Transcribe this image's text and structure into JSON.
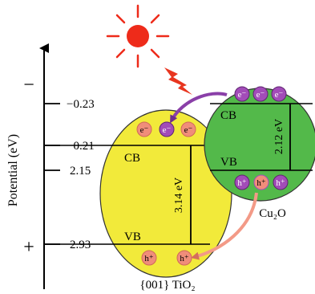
{
  "axis": {
    "label": "Potential (eV)",
    "minus_sign": "−",
    "plus_sign": "+",
    "ticks": [
      "−0.23",
      "−0.21",
      "2.15",
      "2.93"
    ]
  },
  "tio2": {
    "label": "{001} TiO₂",
    "cb_label": "CB",
    "vb_label": "VB",
    "gap_label": "3.14 eV",
    "fill": "#f2ea3a",
    "electrons": [
      "e⁻",
      "e⁻",
      "e⁻"
    ],
    "holes": [
      "h⁺",
      "h⁺"
    ]
  },
  "cu2o": {
    "label": "Cu₂O",
    "cb_label": "CB",
    "vb_label": "VB",
    "gap_label": "2.12 eV",
    "fill": "#53b94a",
    "electrons": [
      "e⁻",
      "e⁻",
      "e⁻"
    ],
    "holes": [
      "h⁺",
      "h⁺",
      "h⁺"
    ]
  },
  "colors": {
    "sun": "#ee2b1a",
    "lightning": "#e8351f",
    "electron_pink": "#f08d7a",
    "electron_purple": "#a24cb8",
    "electron_arrow": "#8a3fa8",
    "hole_arrow": "#f39a87"
  }
}
